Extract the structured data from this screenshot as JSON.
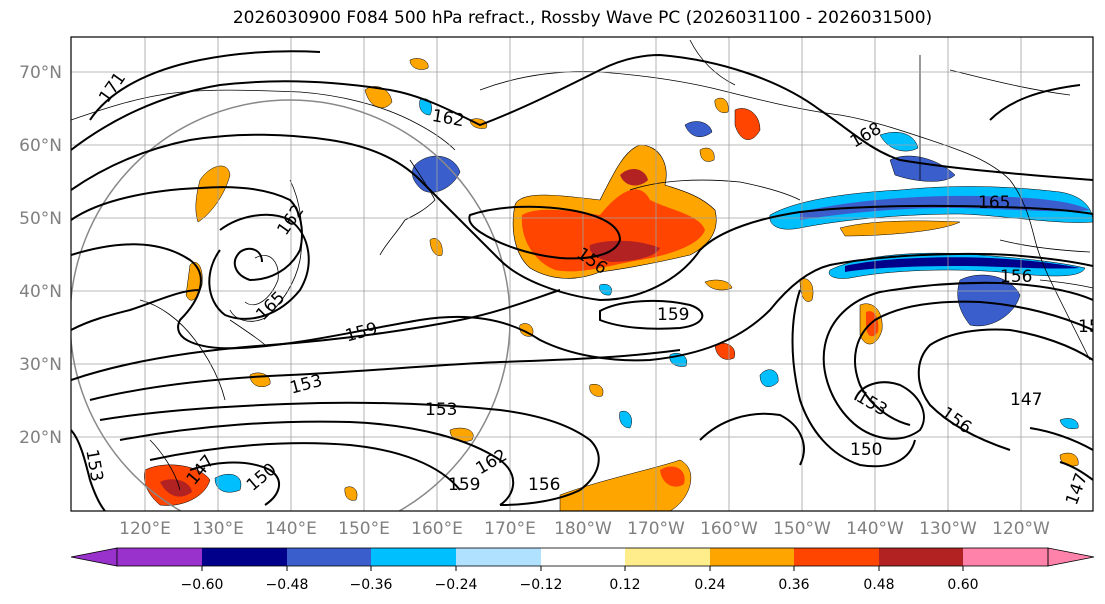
{
  "title": "2026030900 F084 500 hPa refract., Rossby Wave PC (2026031100 - 2026031500)",
  "lat_labels": [
    "70°N",
    "60°N",
    "50°N",
    "40°N",
    "30°N",
    "20°N"
  ],
  "lon_labels": [
    "120°E",
    "130°E",
    "140°E",
    "150°E",
    "160°E",
    "170°E",
    "180°W",
    "170°W",
    "160°W",
    "150°W",
    "140°W",
    "130°W",
    "120°W"
  ],
  "colorbar": {
    "ticks": [
      "−0.60",
      "−0.48",
      "−0.36",
      "−0.24",
      "−0.12",
      "0.12",
      "0.24",
      "0.36",
      "0.48",
      "0.60"
    ],
    "colors": [
      "#9932cc",
      "#00008b",
      "#3a5fcd",
      "#00bfff",
      "#b0e2ff",
      "#ffffff",
      "#ffec8b",
      "#ffa500",
      "#ff4500",
      "#b22222",
      "#ff82ab"
    ]
  },
  "contour_labels": [
    "171",
    "162",
    "168",
    "165",
    "162",
    "165",
    "156",
    "159",
    "159",
    "153",
    "153",
    "150",
    "162",
    "159",
    "156",
    "153",
    "150",
    "147",
    "153",
    "156",
    "147",
    "147",
    "153",
    "156"
  ]
}
